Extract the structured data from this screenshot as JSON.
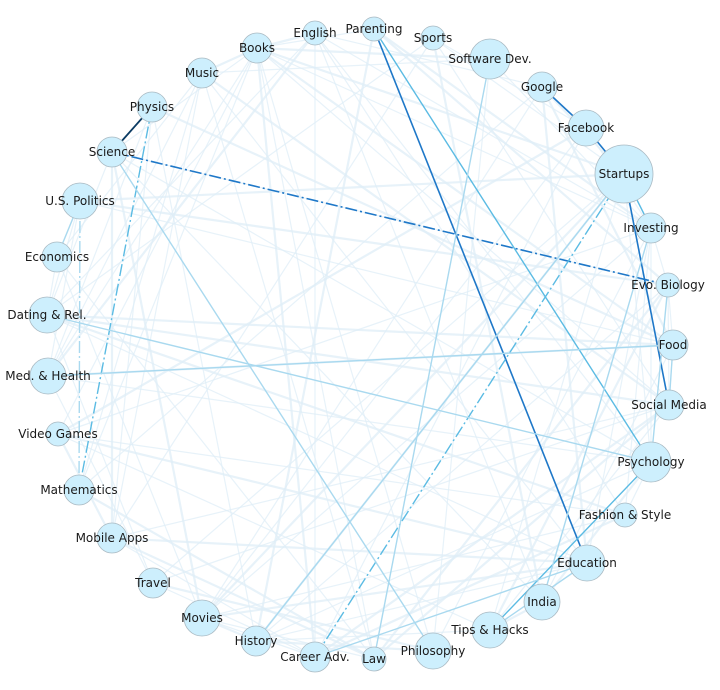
{
  "nodes": [
    {
      "id": "english",
      "label": "English",
      "size": 1
    },
    {
      "id": "parenting",
      "label": "Parenting",
      "size": 1
    },
    {
      "id": "sports",
      "label": "Sports",
      "size": 1
    },
    {
      "id": "books",
      "label": "Books",
      "size": 2
    },
    {
      "id": "software-dev",
      "label": "Software Dev.",
      "size": 4
    },
    {
      "id": "music",
      "label": "Music",
      "size": 2
    },
    {
      "id": "google",
      "label": "Google",
      "size": 2
    },
    {
      "id": "physics",
      "label": "Physics",
      "size": 2
    },
    {
      "id": "facebook",
      "label": "Facebook",
      "size": 3
    },
    {
      "id": "science",
      "label": "Science",
      "size": 2
    },
    {
      "id": "startups",
      "label": "Startups",
      "size": 5
    },
    {
      "id": "us-politics",
      "label": "U.S. Politics",
      "size": 3
    },
    {
      "id": "investing",
      "label": "Investing",
      "size": 2
    },
    {
      "id": "economics",
      "label": "Economics",
      "size": 2
    },
    {
      "id": "evo-biology",
      "label": "Evo. Biology",
      "size": 1
    },
    {
      "id": "dating-rel",
      "label": "Dating & Rel.",
      "size": 3
    },
    {
      "id": "food",
      "label": "Food",
      "size": 2
    },
    {
      "id": "med-health",
      "label": "Med. & Health",
      "size": 3
    },
    {
      "id": "social-media",
      "label": "Social Media",
      "size": 2
    },
    {
      "id": "video-games",
      "label": "Video Games",
      "size": 1
    },
    {
      "id": "psychology",
      "label": "Psychology",
      "size": 4
    },
    {
      "id": "mathematics",
      "label": "Mathematics",
      "size": 2
    },
    {
      "id": "fashion-style",
      "label": "Fashion & Style",
      "size": 1
    },
    {
      "id": "mobile-apps",
      "label": "Mobile Apps",
      "size": 2
    },
    {
      "id": "education",
      "label": "Education",
      "size": 3
    },
    {
      "id": "travel",
      "label": "Travel",
      "size": 2
    },
    {
      "id": "india",
      "label": "India",
      "size": 3
    },
    {
      "id": "movies",
      "label": "Movies",
      "size": 3
    },
    {
      "id": "tips-hacks",
      "label": "Tips & Hacks",
      "size": 3
    },
    {
      "id": "history",
      "label": "History",
      "size": 2
    },
    {
      "id": "philosophy",
      "label": "Philosophy",
      "size": 3
    },
    {
      "id": "career-adv",
      "label": "Career Adv.",
      "size": 2
    },
    {
      "id": "law",
      "label": "Law",
      "size": 1
    }
  ],
  "strong_edges": [
    {
      "source": "physics",
      "target": "science",
      "weight": 5,
      "dashed": false
    },
    {
      "source": "google",
      "target": "facebook",
      "weight": 4,
      "dashed": false
    },
    {
      "source": "facebook",
      "target": "startups",
      "weight": 4,
      "dashed": false
    },
    {
      "source": "parenting",
      "target": "education",
      "weight": 4,
      "dashed": false
    },
    {
      "source": "science",
      "target": "evo-biology",
      "weight": 4,
      "dashed": true
    },
    {
      "source": "startups",
      "target": "social-media",
      "weight": 4,
      "dashed": false
    },
    {
      "source": "startups",
      "target": "investing",
      "weight": 3,
      "dashed": false
    },
    {
      "source": "parenting",
      "target": "psychology",
      "weight": 3,
      "dashed": false
    },
    {
      "source": "startups",
      "target": "career-adv",
      "weight": 3,
      "dashed": true
    },
    {
      "source": "physics",
      "target": "mathematics",
      "weight": 3,
      "dashed": true
    },
    {
      "source": "software-dev",
      "target": "law",
      "weight": 2,
      "dashed": false
    },
    {
      "source": "psychology",
      "target": "tips-hacks",
      "weight": 3,
      "dashed": false
    },
    {
      "source": "dating-rel",
      "target": "psychology",
      "weight": 2,
      "dashed": false
    },
    {
      "source": "science",
      "target": "philosophy",
      "weight": 2,
      "dashed": false
    },
    {
      "source": "food",
      "target": "social-media",
      "weight": 2,
      "dashed": false
    },
    {
      "source": "med-health",
      "target": "food",
      "weight": 2,
      "dashed": false
    },
    {
      "source": "economics",
      "target": "us-politics",
      "weight": 2,
      "dashed": false
    },
    {
      "source": "startups",
      "target": "history",
      "weight": 2,
      "dashed": false
    },
    {
      "source": "education",
      "target": "tips-hacks",
      "weight": 2,
      "dashed": false
    },
    {
      "source": "education",
      "target": "career-adv",
      "weight": 2,
      "dashed": false
    },
    {
      "source": "us-politics",
      "target": "mathematics",
      "weight": 2,
      "dashed": true
    },
    {
      "source": "evo-biology",
      "target": "psychology",
      "weight": 2,
      "dashed": false
    },
    {
      "source": "investing",
      "target": "india",
      "weight": 2,
      "dashed": false
    }
  ],
  "colors": {
    "node_fill": "#cdeffd",
    "node_stroke": "#a9b9c2",
    "edge_strong": "#1f78c8",
    "edge_medium": "#5bbbe3",
    "edge_light": "#a9d9ef",
    "edge_faint": "#dfeef7",
    "edge_darkest": "#0b3b63"
  }
}
